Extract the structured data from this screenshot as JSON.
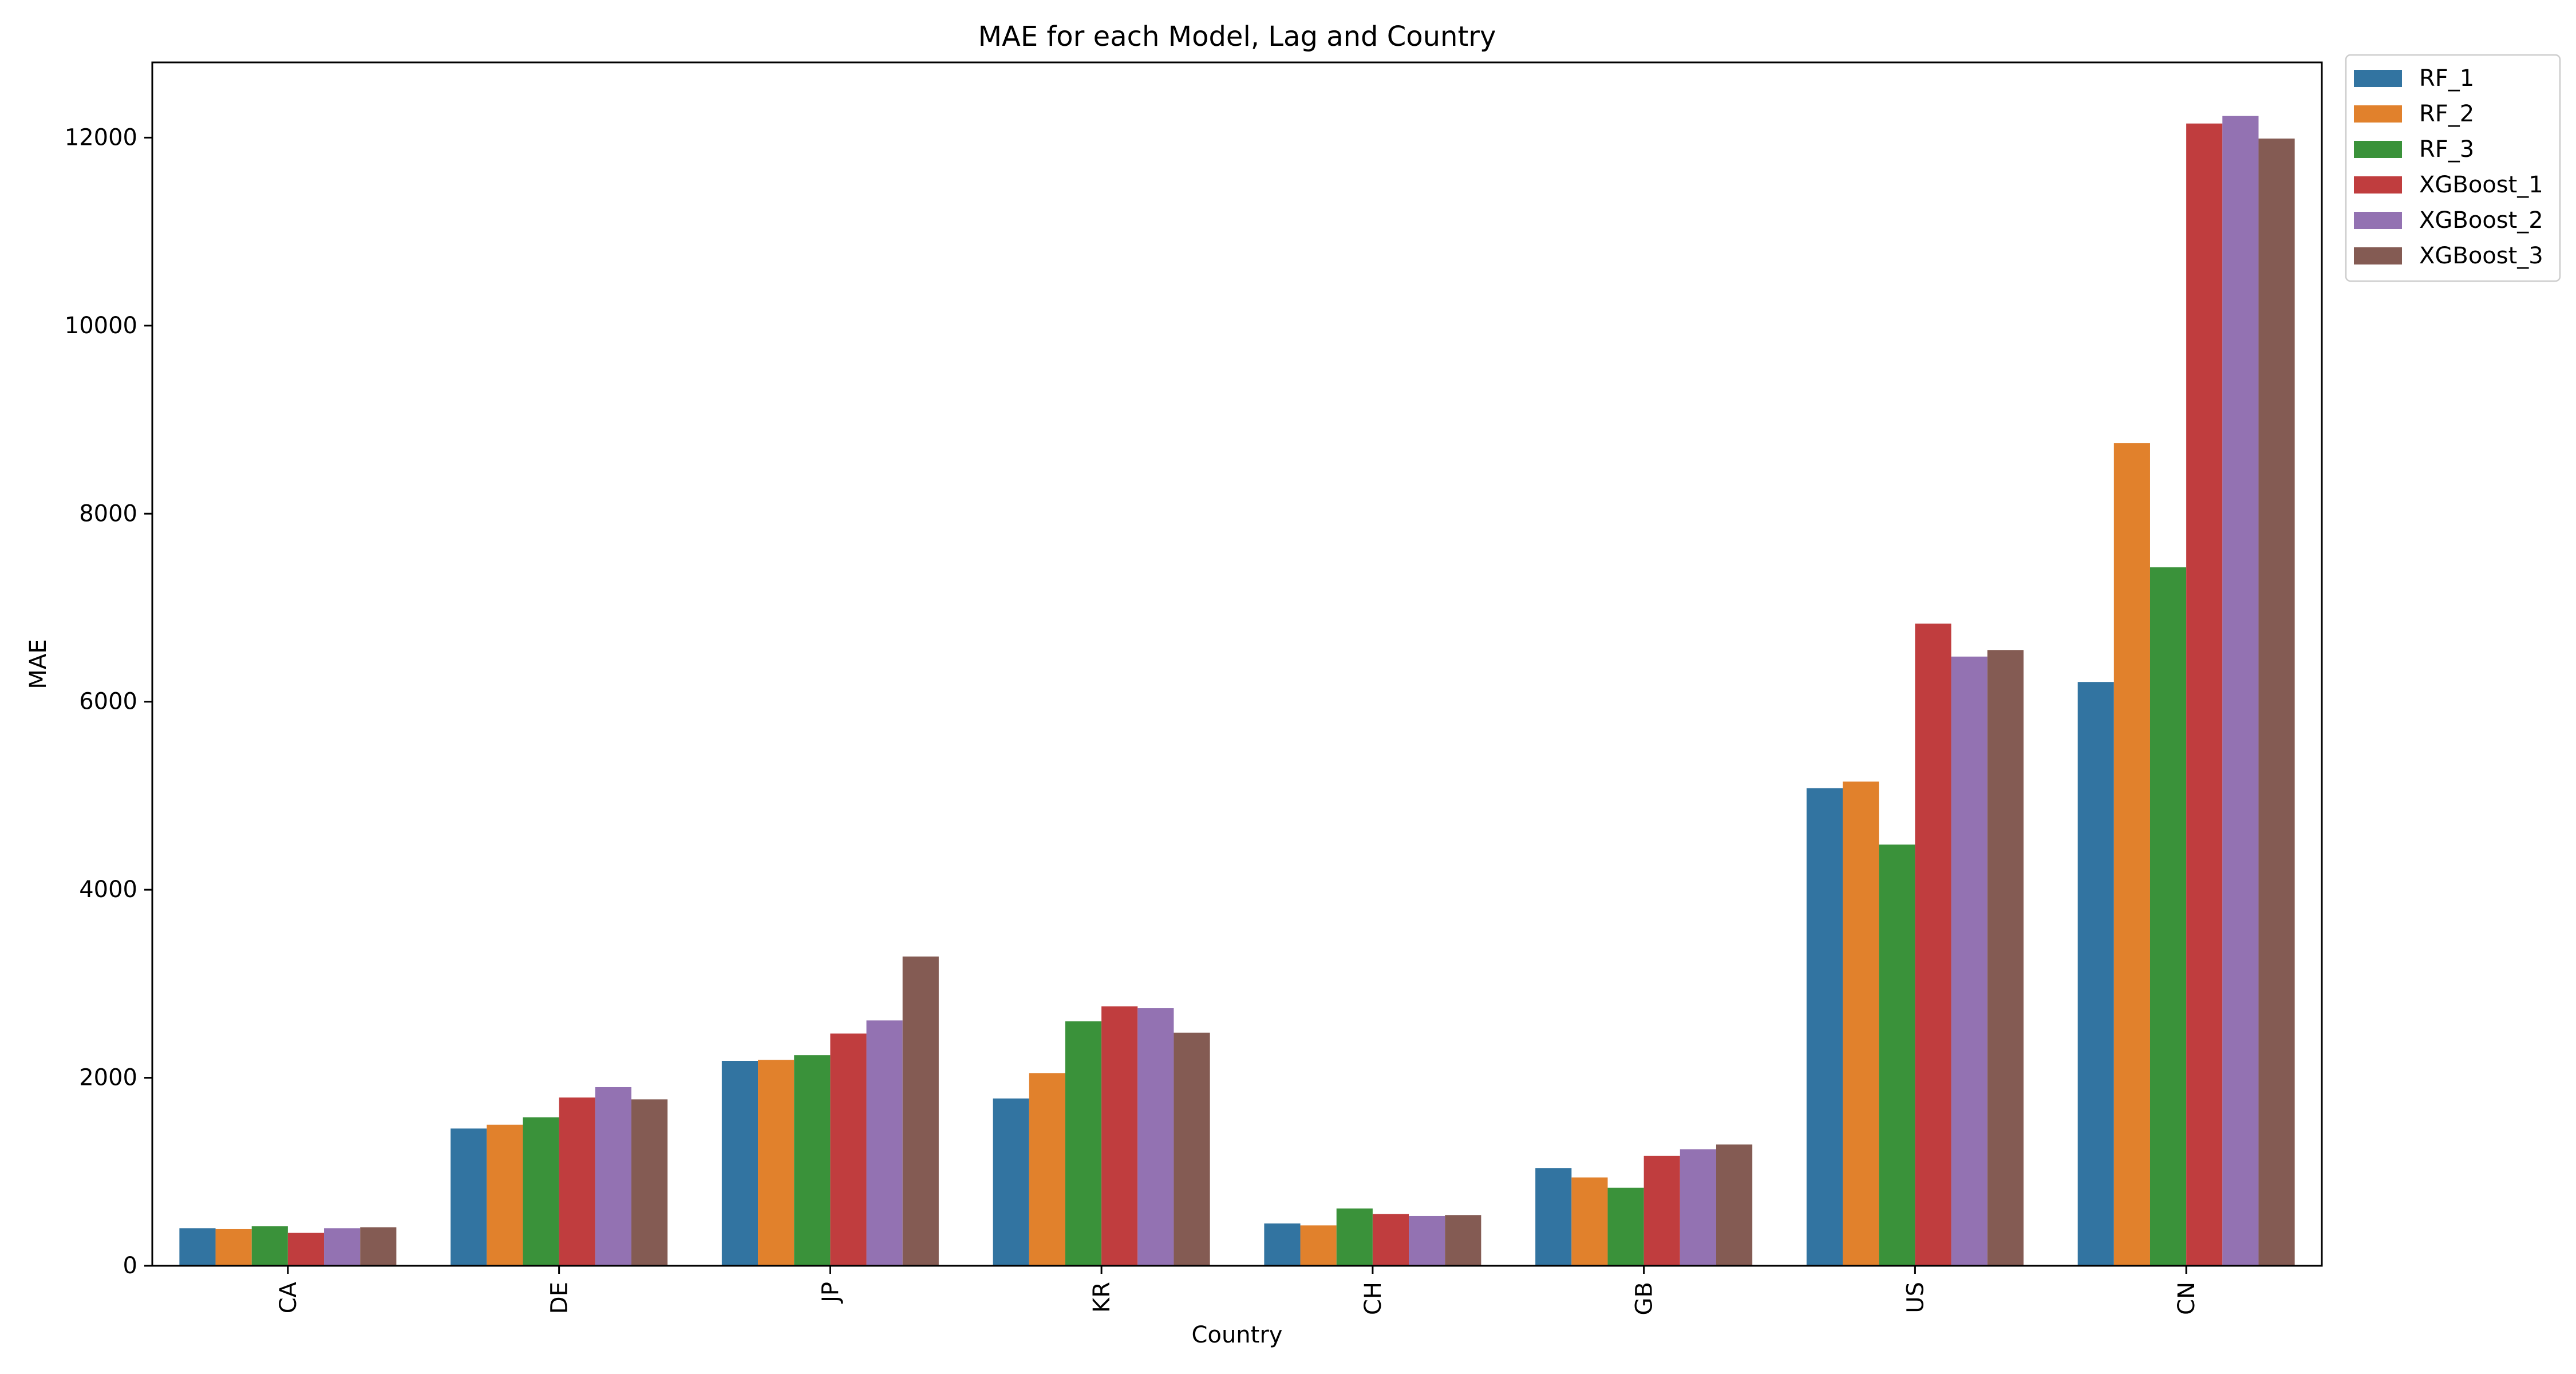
{
  "chart_data": {
    "type": "bar",
    "title": "MAE for each Model, Lag and Country",
    "xlabel": "Country",
    "ylabel": "MAE",
    "ylim": [
      0,
      12800
    ],
    "yticks": [
      0,
      2000,
      4000,
      6000,
      8000,
      10000,
      12000
    ],
    "grid": false,
    "legend_position": "outside top-right",
    "categories": [
      "CA",
      "DE",
      "JP",
      "KR",
      "CH",
      "GB",
      "US",
      "CN"
    ],
    "series": [
      {
        "name": "RF_1",
        "color": "#3274a1",
        "values": [
          400,
          1460,
          2180,
          1780,
          450,
          1040,
          5080,
          6210
        ]
      },
      {
        "name": "RF_2",
        "color": "#e1812c",
        "values": [
          390,
          1500,
          2190,
          2050,
          430,
          940,
          5150,
          8750
        ]
      },
      {
        "name": "RF_3",
        "color": "#3a923a",
        "values": [
          420,
          1580,
          2240,
          2600,
          610,
          830,
          4480,
          7430
        ]
      },
      {
        "name": "XGBoost_1",
        "color": "#c03d3e",
        "values": [
          350,
          1790,
          2470,
          2760,
          550,
          1170,
          6830,
          12150
        ]
      },
      {
        "name": "XGBoost_2",
        "color": "#9372b2",
        "values": [
          400,
          1900,
          2610,
          2740,
          530,
          1240,
          6480,
          12230
        ]
      },
      {
        "name": "XGBoost_3",
        "color": "#845b53",
        "values": [
          410,
          1770,
          3290,
          2480,
          540,
          1290,
          6550,
          11990
        ]
      }
    ]
  }
}
